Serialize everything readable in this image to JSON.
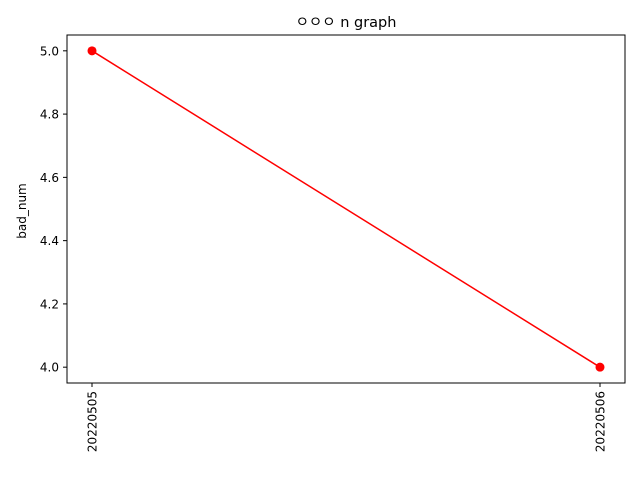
{
  "chart_data": {
    "type": "line",
    "title": "ㅇㅇㅇ n graph",
    "xlabel": "",
    "ylabel": "bad_num",
    "categories": [
      "20220505",
      "20220506"
    ],
    "series": [
      {
        "values": [
          5.0,
          4.0
        ],
        "color": "#ff0000",
        "marker": "circle"
      }
    ],
    "ylim": [
      3.95,
      5.05
    ],
    "yticks": [
      "4.0",
      "4.2",
      "4.4",
      "4.6",
      "4.8",
      "5.0"
    ],
    "xtick_rotation": "vertical",
    "grid": false,
    "legend": "none"
  }
}
